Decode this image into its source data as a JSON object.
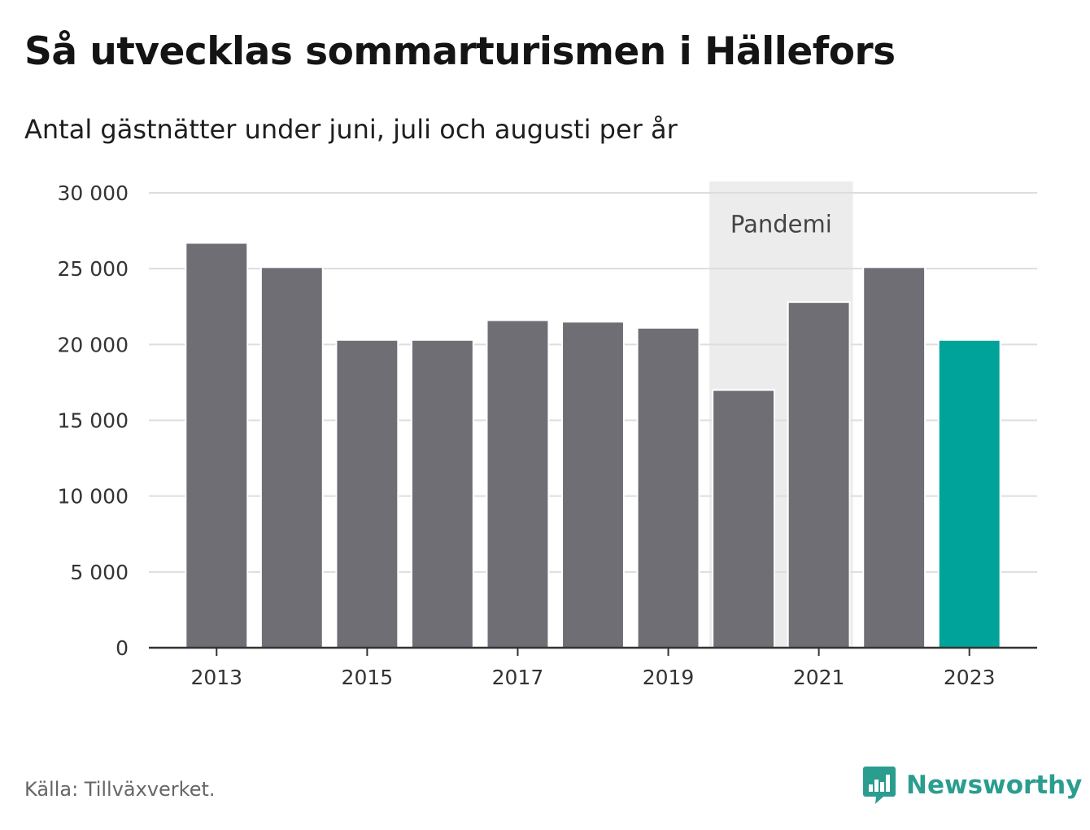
{
  "title": "Så utvecklas sommarturismen i Hällefors",
  "subtitle": "Antal gästnätter under juni, juli och augusti per år",
  "source": "Källa: Tillväxverket.",
  "brand": {
    "name": "Newsworthy",
    "icon": "newsworthy-logo-icon",
    "color": "#2a9d8f"
  },
  "chart_data": {
    "type": "bar",
    "categories": [
      "2013",
      "2014",
      "2015",
      "2016",
      "2017",
      "2018",
      "2019",
      "2020",
      "2021",
      "2022",
      "2023"
    ],
    "values": [
      26700,
      25100,
      20300,
      20300,
      21600,
      21500,
      21100,
      17000,
      22800,
      25100,
      20300
    ],
    "ylim": [
      0,
      30000
    ],
    "yticks": [
      0,
      5000,
      10000,
      15000,
      20000,
      25000,
      30000
    ],
    "ytick_labels": [
      "0",
      "5 000",
      "10 000",
      "15 000",
      "20 000",
      "25 000",
      "30 000"
    ],
    "xtick_labels": [
      "2013",
      "2015",
      "2017",
      "2019",
      "2021",
      "2023"
    ],
    "grid": true,
    "colors": {
      "bar": "#6f6e75",
      "highlight": "#00a39a",
      "band": "#ececec"
    },
    "highlight_category": "2023",
    "annotation": {
      "label": "Pandemi",
      "from": "2020",
      "to": "2021"
    }
  }
}
